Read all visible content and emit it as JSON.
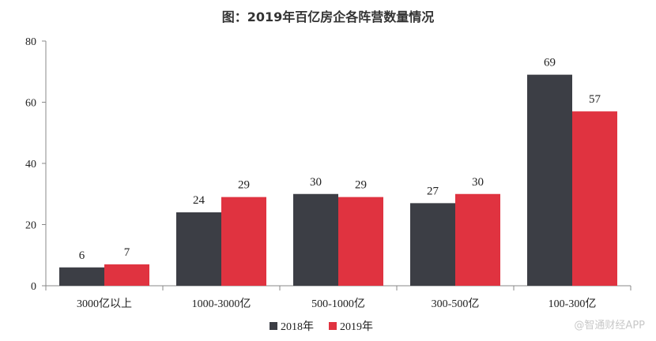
{
  "watermark": "@智通财经APP",
  "chart_data": {
    "type": "bar",
    "title": "图：2019年百亿房企各阵营数量情况",
    "xlabel": "",
    "ylabel": "",
    "ylim": [
      0,
      80
    ],
    "yticks": [
      0,
      20,
      40,
      60,
      80
    ],
    "categories": [
      "3000亿以上",
      "1000-3000亿",
      "500-1000亿",
      "300-500亿",
      "100-300亿"
    ],
    "series": [
      {
        "name": "2018年",
        "color": "#3c3e45",
        "values": [
          6,
          24,
          30,
          27,
          69
        ]
      },
      {
        "name": "2019年",
        "color": "#e03340",
        "values": [
          7,
          29,
          29,
          30,
          57
        ]
      }
    ],
    "legend_position": "bottom-center",
    "data_labels": true,
    "grid": false
  }
}
